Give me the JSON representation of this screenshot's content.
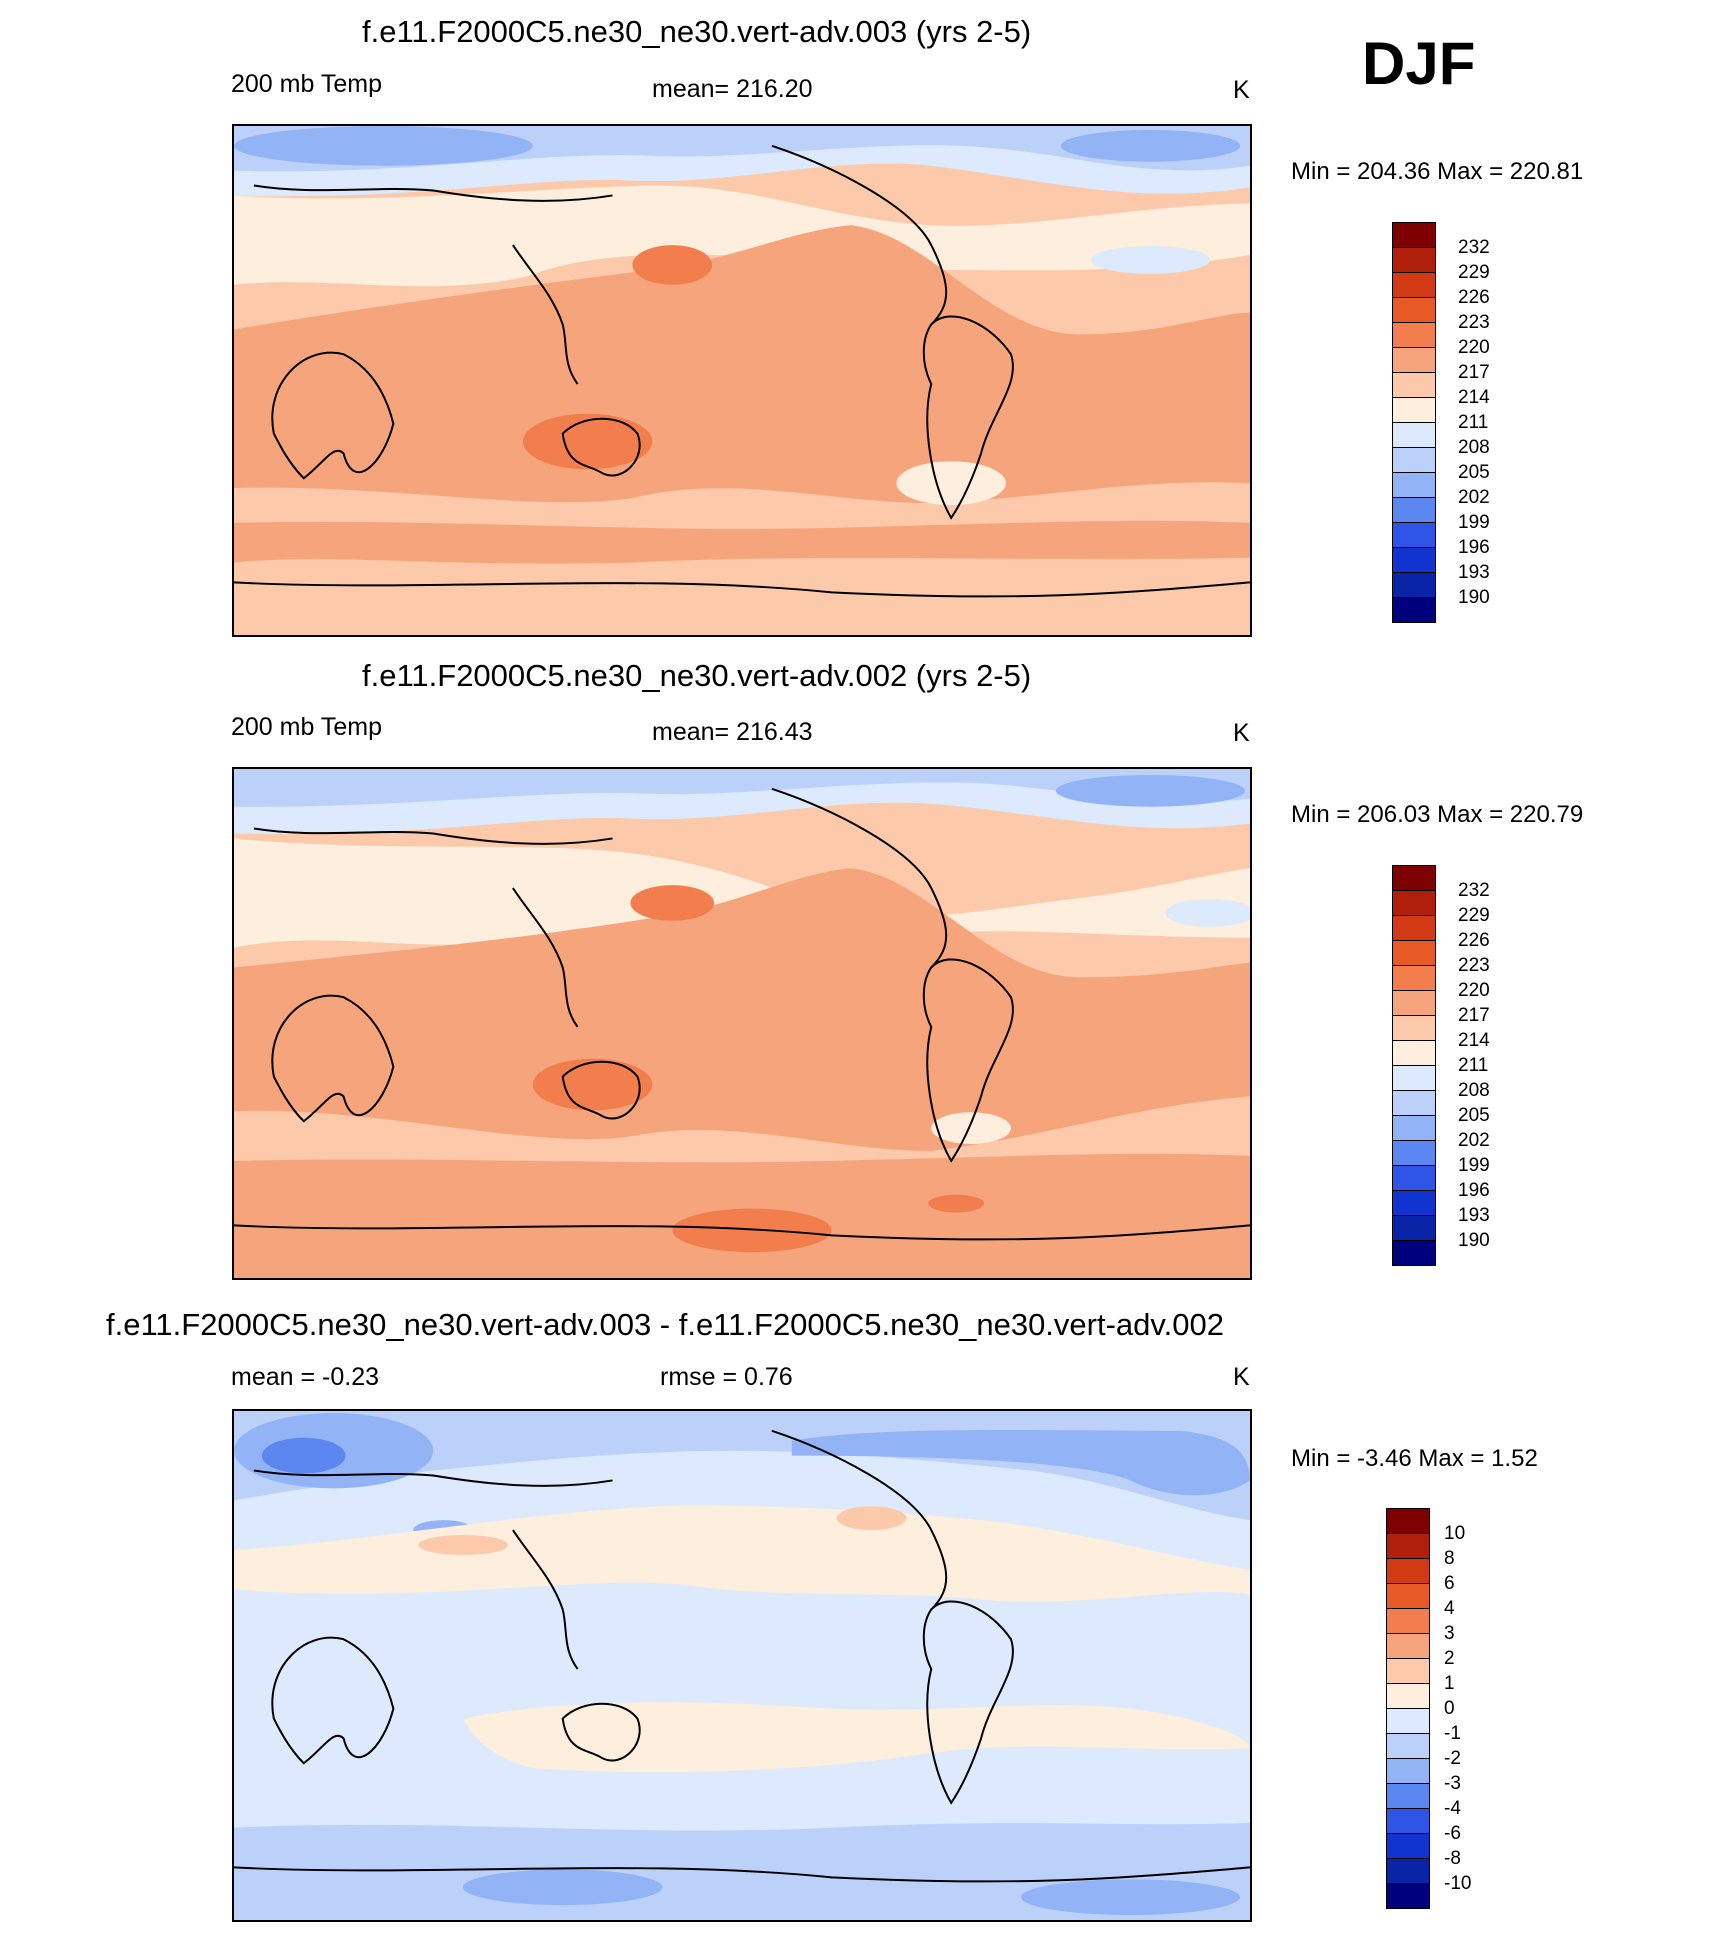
{
  "season": "DJF",
  "colors": {
    "t190": "#00007f",
    "t193": "#0a24a8",
    "t196": "#1134d1",
    "t199": "#2e55e6",
    "t202": "#5c86f0",
    "t205": "#93b3f7",
    "t208": "#bcd1fa",
    "t211": "#dde9fc",
    "t214": "#fdeedd",
    "t217": "#fcc9ab",
    "t220": "#f6a47b",
    "t223": "#f27e4e",
    "t226": "#e85a25",
    "t229": "#d13a13",
    "t232": "#b01f09",
    "t235": "#7f0000"
  },
  "panels": [
    {
      "title": "f.e11.F2000C5.ne30_ne30.vert-adv.003 (yrs 2-5)",
      "left": "200 mb Temp",
      "center": "mean= 216.20",
      "right": "K",
      "minmax": "Min = 204.36 Max = 220.81",
      "colorbar_labels": [
        "232",
        "229",
        "226",
        "223",
        "220",
        "217",
        "214",
        "211",
        "208",
        "205",
        "202",
        "199",
        "196",
        "193",
        "190"
      ]
    },
    {
      "title": "f.e11.F2000C5.ne30_ne30.vert-adv.002 (yrs 2-5)",
      "left": "200 mb Temp",
      "center": "mean= 216.43",
      "right": "K",
      "minmax": "Min = 206.03 Max = 220.79",
      "colorbar_labels": [
        "232",
        "229",
        "226",
        "223",
        "220",
        "217",
        "214",
        "211",
        "208",
        "205",
        "202",
        "199",
        "196",
        "193",
        "190"
      ]
    },
    {
      "title": "f.e11.F2000C5.ne30_ne30.vert-adv.003 - f.e11.F2000C5.ne30_ne30.vert-adv.002",
      "left": "mean =  -0.23",
      "center": "rmse =   0.76",
      "right": "K",
      "minmax": "Min =  -3.46 Max =   1.52",
      "colorbar_labels": [
        "10",
        "8",
        "6",
        "4",
        "3",
        "2",
        "1",
        "0",
        "-1",
        "-2",
        "-3",
        "-4",
        "-6",
        "-8",
        "-10"
      ]
    }
  ]
}
